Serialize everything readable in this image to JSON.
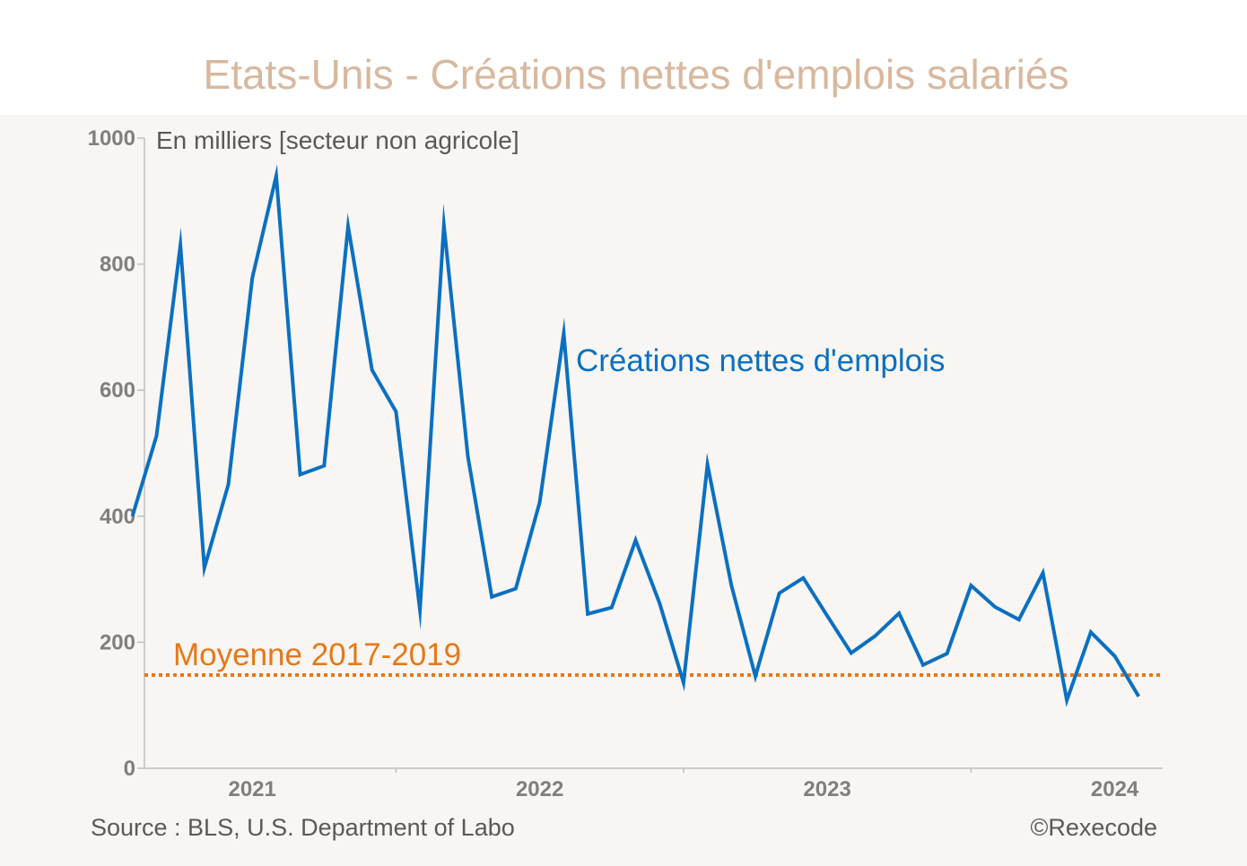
{
  "chart_data": {
    "type": "line",
    "title": "Etats-Unis - Créations nettes d'emplois salariés",
    "unit_note": "En milliers [secteur non agricole]",
    "ylim": [
      0,
      1000
    ],
    "yticks": [
      "0",
      "200",
      "400",
      "600",
      "800",
      "1000"
    ],
    "xlim": [
      "2020-08",
      "2024-03"
    ],
    "xticks": [
      {
        "label": "2021",
        "date": "2021-01"
      },
      {
        "label": "2022",
        "date": "2022-01"
      },
      {
        "label": "2023",
        "date": "2023-01"
      },
      {
        "label": "2024",
        "date": "2024-01"
      }
    ],
    "grid": false,
    "series": [
      {
        "name": "Créations nettes d'emplois",
        "color": "#0a70c2",
        "x": [
          "2020-08",
          "2020-09",
          "2020-10",
          "2020-11",
          "2020-12",
          "2021-01",
          "2021-02",
          "2021-03",
          "2021-04",
          "2021-05",
          "2021-06",
          "2021-07",
          "2021-08",
          "2021-09",
          "2021-10",
          "2021-11",
          "2021-12",
          "2022-01",
          "2022-02",
          "2022-03",
          "2022-04",
          "2022-05",
          "2022-06",
          "2022-07",
          "2022-08",
          "2022-09",
          "2022-10",
          "2022-11",
          "2022-12",
          "2023-01",
          "2023-02",
          "2023-03",
          "2023-04",
          "2023-05",
          "2023-06",
          "2023-07",
          "2023-08",
          "2023-09",
          "2023-10",
          "2023-11",
          "2023-12",
          "2024-01",
          "2024-02"
        ],
        "values": [
          400,
          527,
          830,
          318,
          450,
          778,
          940,
          466,
          480,
          860,
          632,
          566,
          251,
          862,
          495,
          272,
          285,
          422,
          690,
          245,
          255,
          362,
          262,
          136,
          482,
          290,
          146,
          278,
          302,
          242,
          183,
          210,
          246,
          164,
          182,
          290,
          256,
          236,
          310,
          108,
          216,
          178,
          114
        ]
      }
    ],
    "reference_line": {
      "label": "Moyenne 2017-2019",
      "value": 148,
      "color": "#e77817"
    },
    "source": "Source : BLS, U.S. Department of Labo",
    "copyright": "©Rexecode"
  }
}
